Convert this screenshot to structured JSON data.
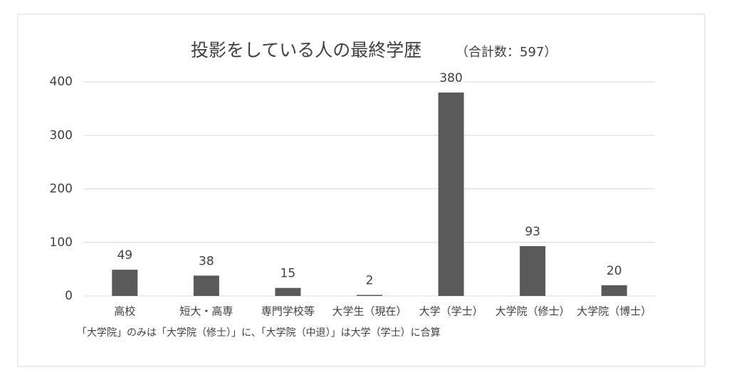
{
  "chart_data": {
    "type": "bar",
    "title": "投影をしている人の最終学歴",
    "subtitle": "（合計数：597）",
    "categories": [
      "高校",
      "短大・高専",
      "専門学校等",
      "大学生（現在）",
      "大学（学士）",
      "大学院（修士）",
      "大学院（博士）"
    ],
    "values": [
      49,
      38,
      15,
      2,
      380,
      93,
      20
    ],
    "color": "#595959",
    "ylim": [
      0,
      400
    ],
    "yticks": [
      0,
      100,
      200,
      300,
      400
    ],
    "grid": true,
    "note": "「大学院」のみは「大学院（修士）」に、「大学院（中退）」は大学（学士）に合算"
  }
}
